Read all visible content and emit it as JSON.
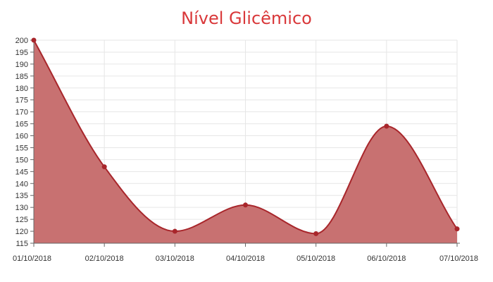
{
  "chart_data": {
    "type": "area",
    "title": "Nível Glicêmico",
    "xlabel": "",
    "ylabel": "",
    "categories": [
      "01/10/2018",
      "02/10/2018",
      "03/10/2018",
      "04/10/2018",
      "05/10/2018",
      "06/10/2018",
      "07/10/2018"
    ],
    "series": [
      {
        "values": [
          200,
          147,
          120,
          131,
          119,
          164,
          121
        ]
      }
    ],
    "ylim": [
      115,
      200
    ],
    "yticks": [
      115,
      120,
      125,
      130,
      135,
      140,
      145,
      150,
      155,
      160,
      165,
      170,
      175,
      180,
      185,
      190,
      195,
      200
    ],
    "grid": true,
    "smooth": true,
    "legend": "none"
  },
  "colors": {
    "title": "#d9383a",
    "line": "#a8262b",
    "fill": "#c87171",
    "point": "#a8262b",
    "grid": "#e6e6e6",
    "axis": "#666666"
  }
}
